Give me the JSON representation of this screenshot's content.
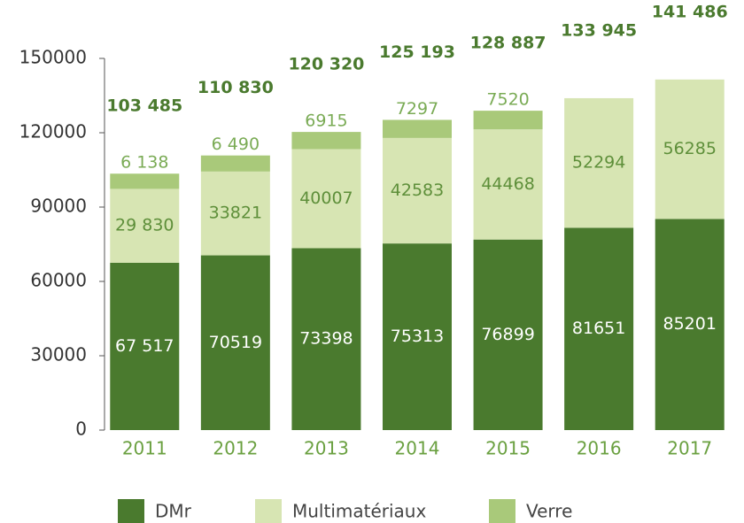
{
  "chart_data": {
    "type": "stacked-bar",
    "categories": [
      "2011",
      "2012",
      "2013",
      "2014",
      "2015",
      "2016",
      "2017"
    ],
    "series": [
      {
        "name": "DMr",
        "color": "#4a7a2e",
        "label_color": "#ffffff",
        "values": [
          67517,
          70519,
          73398,
          75313,
          76899,
          81651,
          85201
        ],
        "value_labels": [
          "67 517",
          "70519",
          "73398",
          "75313",
          "76899",
          "81651",
          "85201"
        ]
      },
      {
        "name": "Multimatériaux",
        "color": "#d7e5b3",
        "label_color": "#5e8f3a",
        "values": [
          29830,
          33821,
          40007,
          42583,
          44468,
          52294,
          56285
        ],
        "value_labels": [
          "29 830",
          "33821",
          "40007",
          "42583",
          "44468",
          "52294",
          "56285"
        ]
      },
      {
        "name": "Verre",
        "color": "#a9c97a",
        "label_color": "#7aab55",
        "values": [
          6138,
          6490,
          6915,
          7297,
          7520,
          null,
          null
        ],
        "value_labels": [
          "6 138",
          "6 490",
          "6915",
          "7297",
          "7520",
          null,
          null
        ]
      }
    ],
    "totals": [
      103485,
      110830,
      120320,
      125193,
      128887,
      133945,
      141486
    ],
    "total_labels": [
      "103 485",
      "110 830",
      "120 320",
      "125 193",
      "128 887",
      "133 945",
      "141 486"
    ],
    "total_color": "#4a7a2e",
    "category_color": "#6aa040",
    "ylim": [
      0,
      150000
    ],
    "yticks": [
      0,
      30000,
      60000,
      90000,
      120000,
      150000
    ]
  }
}
